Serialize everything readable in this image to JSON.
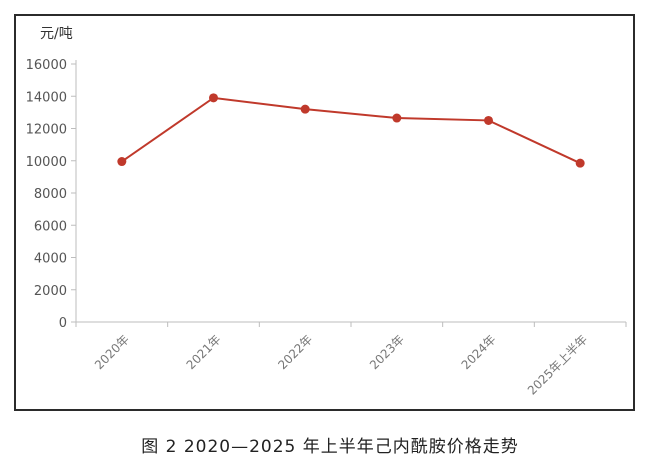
{
  "caption": "图 2  2020—2025 年上半年己内酰胺价格走势",
  "chart_data": {
    "type": "line",
    "title": "",
    "ylabel": "元/吨",
    "xlabel": "",
    "categories": [
      "2020年",
      "2021年",
      "2022年",
      "2023年",
      "2024年",
      "2025年上半年"
    ],
    "series": [
      {
        "values": [
          9950,
          13900,
          13200,
          12650,
          12500,
          9850
        ],
        "color": "#c0392b"
      }
    ],
    "ylim": [
      0,
      16000
    ],
    "yticks": [
      "0",
      "2000",
      "4000",
      "6000",
      "8000",
      "10000",
      "12000",
      "14000",
      "16000"
    ],
    "grid": false,
    "legend": "none"
  }
}
